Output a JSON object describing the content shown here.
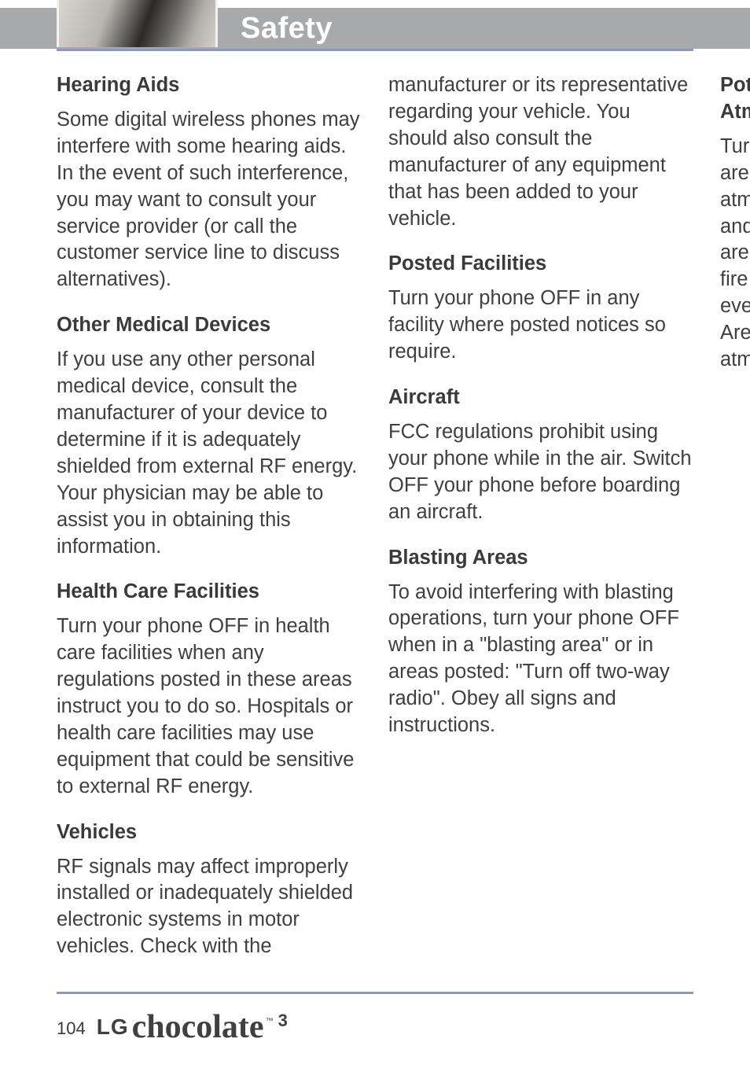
{
  "header": {
    "title": "Safety"
  },
  "sections": [
    {
      "heading": "Hearing Aids",
      "paragraphs": [
        "Some digital wireless phones may interfere with some hearing aids. In the event of such interference, you may want to consult your service provider (or call the customer service line to discuss alternatives)."
      ]
    },
    {
      "heading": "Other Medical Devices",
      "paragraphs": [
        "If you use any other personal medical device, consult the manufacturer of your device to determine if it is adequately shielded from external RF energy. Your physician may be able to assist you in obtaining this information."
      ]
    },
    {
      "heading": "Health Care Facilities",
      "paragraphs": [
        "Turn your phone OFF in health care facilities when any regulations posted in these areas instruct you to do so. Hospitals or health care facilities may use equipment that could be sensitive to external RF energy."
      ]
    },
    {
      "heading": "Vehicles",
      "paragraphs": [
        "RF signals may affect improperly installed or inadequately shielded electronic systems in motor vehicles. Check with the manufacturer or its representative regarding your vehicle.  You should also consult the manufacturer of any equipment that has been added to your vehicle."
      ]
    },
    {
      "heading": "Posted Facilities",
      "paragraphs": [
        "Turn your phone OFF in any facility where posted notices so require."
      ]
    },
    {
      "heading": "Aircraft",
      "paragraphs": [
        "FCC regulations prohibit using your phone while in the air. Switch OFF your phone before boarding an aircraft."
      ]
    },
    {
      "heading": "Blasting Areas",
      "paragraphs": [
        "To avoid interfering with blasting operations, turn your phone OFF when in a \"blasting area\" or in areas posted: \"Turn off two-way radio\". Obey all signs and instructions."
      ]
    },
    {
      "heading": "Potentially Explosive Atmosphere",
      "paragraphs": [
        "Turn your phone OFF when in any area with a potentially explosive atmosphere and obey all signs and instructions. Sparks in such areas could cause an explosion or fire resulting in bodily injury or even death.",
        "Areas with a potentially explosive atmosphere are often, but not"
      ]
    }
  ],
  "footer": {
    "page": "104",
    "brand_lg": "LG",
    "brand_name": "chocolate",
    "brand_tm": "™",
    "brand_suffix": "3"
  },
  "colors": {
    "header_band": "#a8a9ab",
    "accent_line": "#9296bc",
    "text": "#404040",
    "heading": "#3a3a3a"
  }
}
